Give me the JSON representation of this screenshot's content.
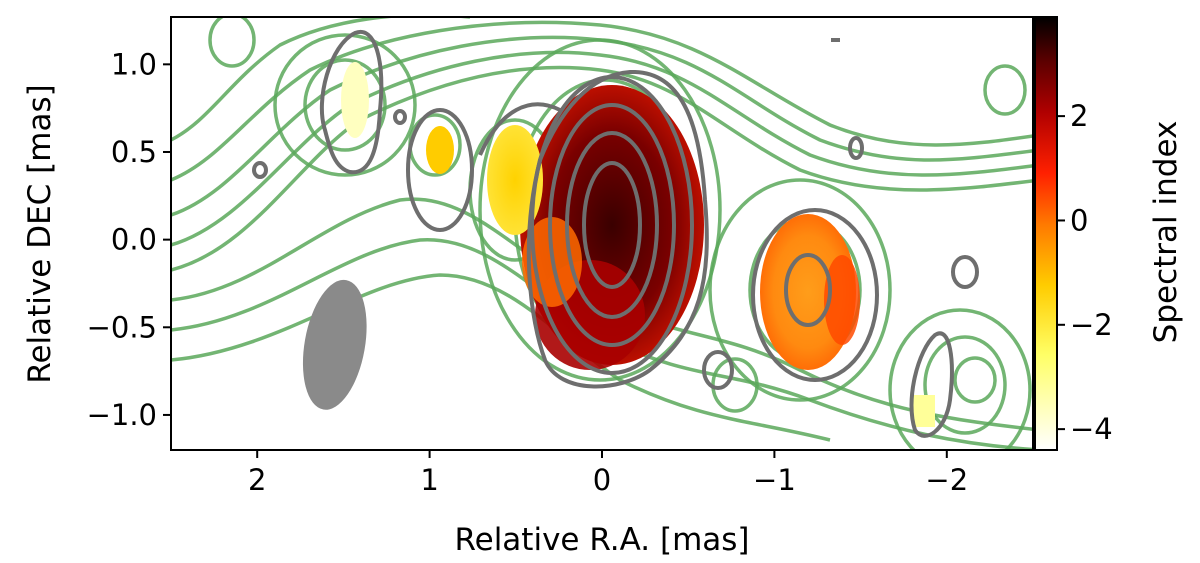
{
  "chart_data": {
    "type": "heatmap",
    "xlabel": "Relative R.A. [mas]",
    "ylabel": "Relative DEC [mas]",
    "colorbar_label": "Spectral index",
    "xlim": [
      2.5,
      -2.5
    ],
    "ylim": [
      -1.2,
      1.27
    ],
    "x_ticks": [
      2,
      1,
      0,
      -1,
      -2
    ],
    "x_tick_labels": [
      "2",
      "1",
      "0",
      "−1",
      "−2"
    ],
    "y_ticks": [
      1.0,
      0.5,
      0.0,
      -0.5,
      -1.0
    ],
    "y_tick_labels": [
      "1.0",
      "0.5",
      "0.0",
      "−0.5",
      "−1.0"
    ],
    "colorbar_range": [
      -4.4,
      3.9
    ],
    "colorbar_ticks": [
      2,
      0,
      -2,
      -4
    ],
    "colorbar_tick_labels": [
      "2",
      "0",
      "−2",
      "−4"
    ],
    "colormap": "afmhot",
    "colors": {
      "contour_green": "#5aa85a",
      "contour_gray": "#6e6e6e",
      "beam": "#8a8a8a"
    },
    "spectral_index_regions": [
      {
        "x": 0.0,
        "y": 0.05,
        "value": 3.2
      },
      {
        "x": -1.1,
        "y": -0.25,
        "value": -0.6
      },
      {
        "x": 0.5,
        "y": 0.35,
        "value": -2.0
      },
      {
        "x": 1.0,
        "y": 0.5,
        "value": -1.8
      },
      {
        "x": 1.5,
        "y": 0.85,
        "value": -3.9
      },
      {
        "x": -1.75,
        "y": -1.0,
        "value": -3.4
      }
    ],
    "beam": {
      "x": 1.55,
      "y": -0.6,
      "major": 0.75,
      "minor": 0.35,
      "position_angle_deg": 10
    },
    "grid": false
  }
}
